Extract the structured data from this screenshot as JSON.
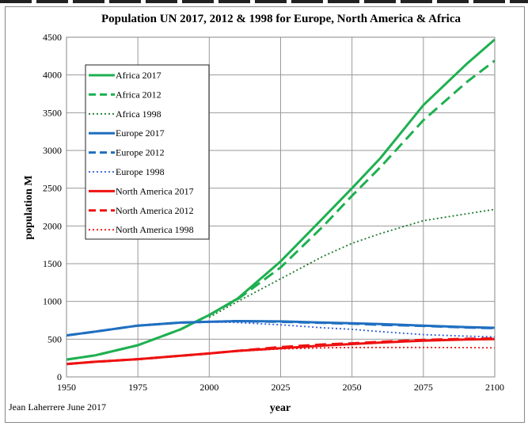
{
  "chart_data": {
    "type": "line",
    "title": "Population  UN 2017, 2012 & 1998 for Europe, North America  & Africa",
    "xlabel": "year",
    "ylabel": "population M",
    "xlim": [
      1950,
      2100
    ],
    "ylim": [
      0,
      4500
    ],
    "xticks": [
      1950,
      1975,
      2000,
      2025,
      2050,
      2075,
      2100
    ],
    "yticks": [
      0,
      500,
      1000,
      1500,
      2000,
      2500,
      3000,
      3500,
      4000,
      4500
    ],
    "grid": true,
    "legend_position": "top-left",
    "credit": "Jean Laherrere  June 2017",
    "x": [
      1950,
      1960,
      1975,
      1990,
      2000,
      2010,
      2025,
      2040,
      2050,
      2060,
      2075,
      2090,
      2100
    ],
    "series": [
      {
        "name": "Africa 2017",
        "color": "#1eb050",
        "style": "solid",
        "values": [
          230,
          285,
          420,
          630,
          820,
          1040,
          1530,
          2110,
          2500,
          2900,
          3600,
          4140,
          4470
        ]
      },
      {
        "name": "Africa 2012",
        "color": "#1eb050",
        "style": "dash",
        "values": [
          230,
          285,
          420,
          630,
          820,
          1030,
          1450,
          2000,
          2400,
          2780,
          3400,
          3900,
          4190
        ]
      },
      {
        "name": "Africa 1998",
        "color": "#1a7a30",
        "style": "dot",
        "values": [
          null,
          null,
          null,
          null,
          790,
          1000,
          1300,
          1600,
          1770,
          1900,
          2070,
          2160,
          2220
        ]
      },
      {
        "name": "Europe 2017",
        "color": "#1f6fc0",
        "style": "solid",
        "values": [
          550,
          600,
          680,
          720,
          730,
          740,
          735,
          720,
          710,
          700,
          680,
          660,
          650
        ]
      },
      {
        "name": "Europe 2012",
        "color": "#1f6fc0",
        "style": "dash",
        "values": [
          550,
          600,
          680,
          720,
          730,
          740,
          730,
          715,
          705,
          690,
          675,
          655,
          645
        ]
      },
      {
        "name": "Europe 1998",
        "color": "#2e5fd8",
        "style": "dot",
        "values": [
          null,
          null,
          null,
          null,
          730,
          720,
          690,
          650,
          630,
          600,
          560,
          540,
          530
        ]
      },
      {
        "name": "North America 2017",
        "color": "#ee1111",
        "style": "solid",
        "values": [
          170,
          200,
          235,
          280,
          310,
          345,
          380,
          415,
          435,
          455,
          480,
          495,
          500
        ]
      },
      {
        "name": "North America 2012",
        "color": "#ee1111",
        "style": "dash",
        "values": [
          170,
          200,
          235,
          280,
          310,
          345,
          395,
          430,
          445,
          465,
          490,
          505,
          510
        ]
      },
      {
        "name": "North America 1998",
        "color": "#ee1111",
        "style": "dot",
        "values": [
          null,
          null,
          null,
          null,
          310,
          340,
          370,
          385,
          390,
          390,
          390,
          388,
          385
        ]
      }
    ]
  }
}
